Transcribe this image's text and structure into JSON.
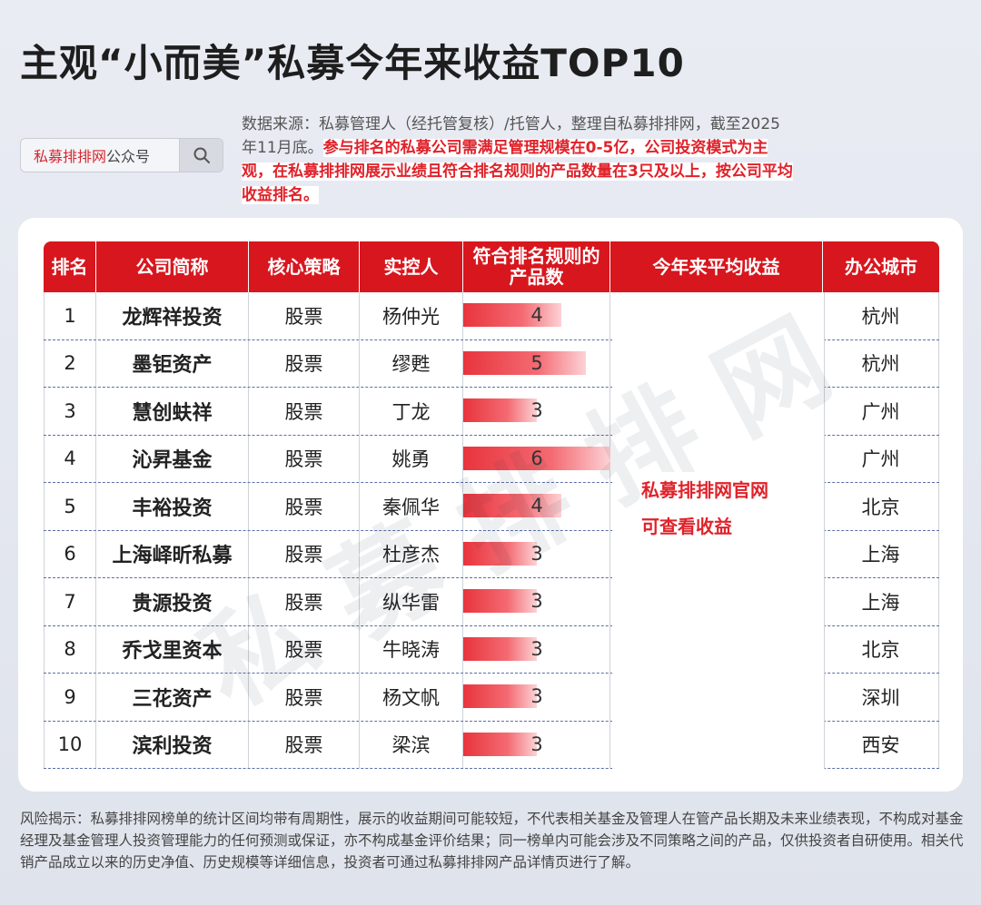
{
  "title": "主观“小而美”私募今年来收益TOP10",
  "search": {
    "brand": "私募排排网",
    "suffix": "公众号",
    "icon": "search-icon"
  },
  "source": {
    "normal": "数据来源：私募管理人（经托管复核）/托管人，整理自私募排排网，截至2025年11月底。",
    "highlight": "参与排名的私募公司需满足管理规模在0-5亿，公司投资模式为主观，在私募排排网展示业绩且符合排名规则的产品数量在3只及以上，按公司平均收益排名。"
  },
  "notice": {
    "line1": "私募排排网官网",
    "line2": "可查看收益"
  },
  "watermark": "私募排排网",
  "risk": "风险揭示：私募排排网榜单的统计区间均带有周期性，展示的收益期间可能较短，不代表相关基金及管理人在管产品长期及未来业绩表现，不构成对基金经理及基金管理人投资管理能力的任何预测或保证，亦不构成基金评价结果；同一榜单内可能会涉及不同策略之间的产品，仅供投资者自研使用。相关代销产品成立以来的历史净值、历史规模等详细信息，投资者可通过私募排排网产品详情页进行了解。",
  "colors": {
    "header": "#d8161e",
    "bar": "#e8343d",
    "notice": "#e0222a"
  },
  "chart_data": {
    "type": "table",
    "columns": [
      "排名",
      "公司简称",
      "核心策略",
      "实控人",
      "符合排名规则的产品数",
      "今年来平均收益",
      "办公城市"
    ],
    "bar_max": 6,
    "rows": [
      {
        "rank": "1",
        "company": "龙辉祥投资",
        "strategy": "股票",
        "controller": "杨仲光",
        "count": 4,
        "city": "杭州"
      },
      {
        "rank": "2",
        "company": "墨钜资产",
        "strategy": "股票",
        "controller": "缪甦",
        "count": 5,
        "city": "杭州"
      },
      {
        "rank": "3",
        "company": "慧创蚨祥",
        "strategy": "股票",
        "controller": "丁龙",
        "count": 3,
        "city": "广州"
      },
      {
        "rank": "4",
        "company": "沁昇基金",
        "strategy": "股票",
        "controller": "姚勇",
        "count": 6,
        "city": "广州"
      },
      {
        "rank": "5",
        "company": "丰裕投资",
        "strategy": "股票",
        "controller": "秦佩华",
        "count": 4,
        "city": "北京"
      },
      {
        "rank": "6",
        "company": "上海峄昕私募",
        "strategy": "股票",
        "controller": "杜彦杰",
        "count": 3,
        "city": "上海"
      },
      {
        "rank": "7",
        "company": "贵源投资",
        "strategy": "股票",
        "controller": "纵华雷",
        "count": 3,
        "city": "上海"
      },
      {
        "rank": "8",
        "company": "乔戈里资本",
        "strategy": "股票",
        "controller": "牛晓涛",
        "count": 3,
        "city": "北京"
      },
      {
        "rank": "9",
        "company": "三花资产",
        "strategy": "股票",
        "controller": "杨文帆",
        "count": 3,
        "city": "深圳"
      },
      {
        "rank": "10",
        "company": "滨利投资",
        "strategy": "股票",
        "controller": "梁滨",
        "count": 3,
        "city": "西安"
      }
    ]
  }
}
